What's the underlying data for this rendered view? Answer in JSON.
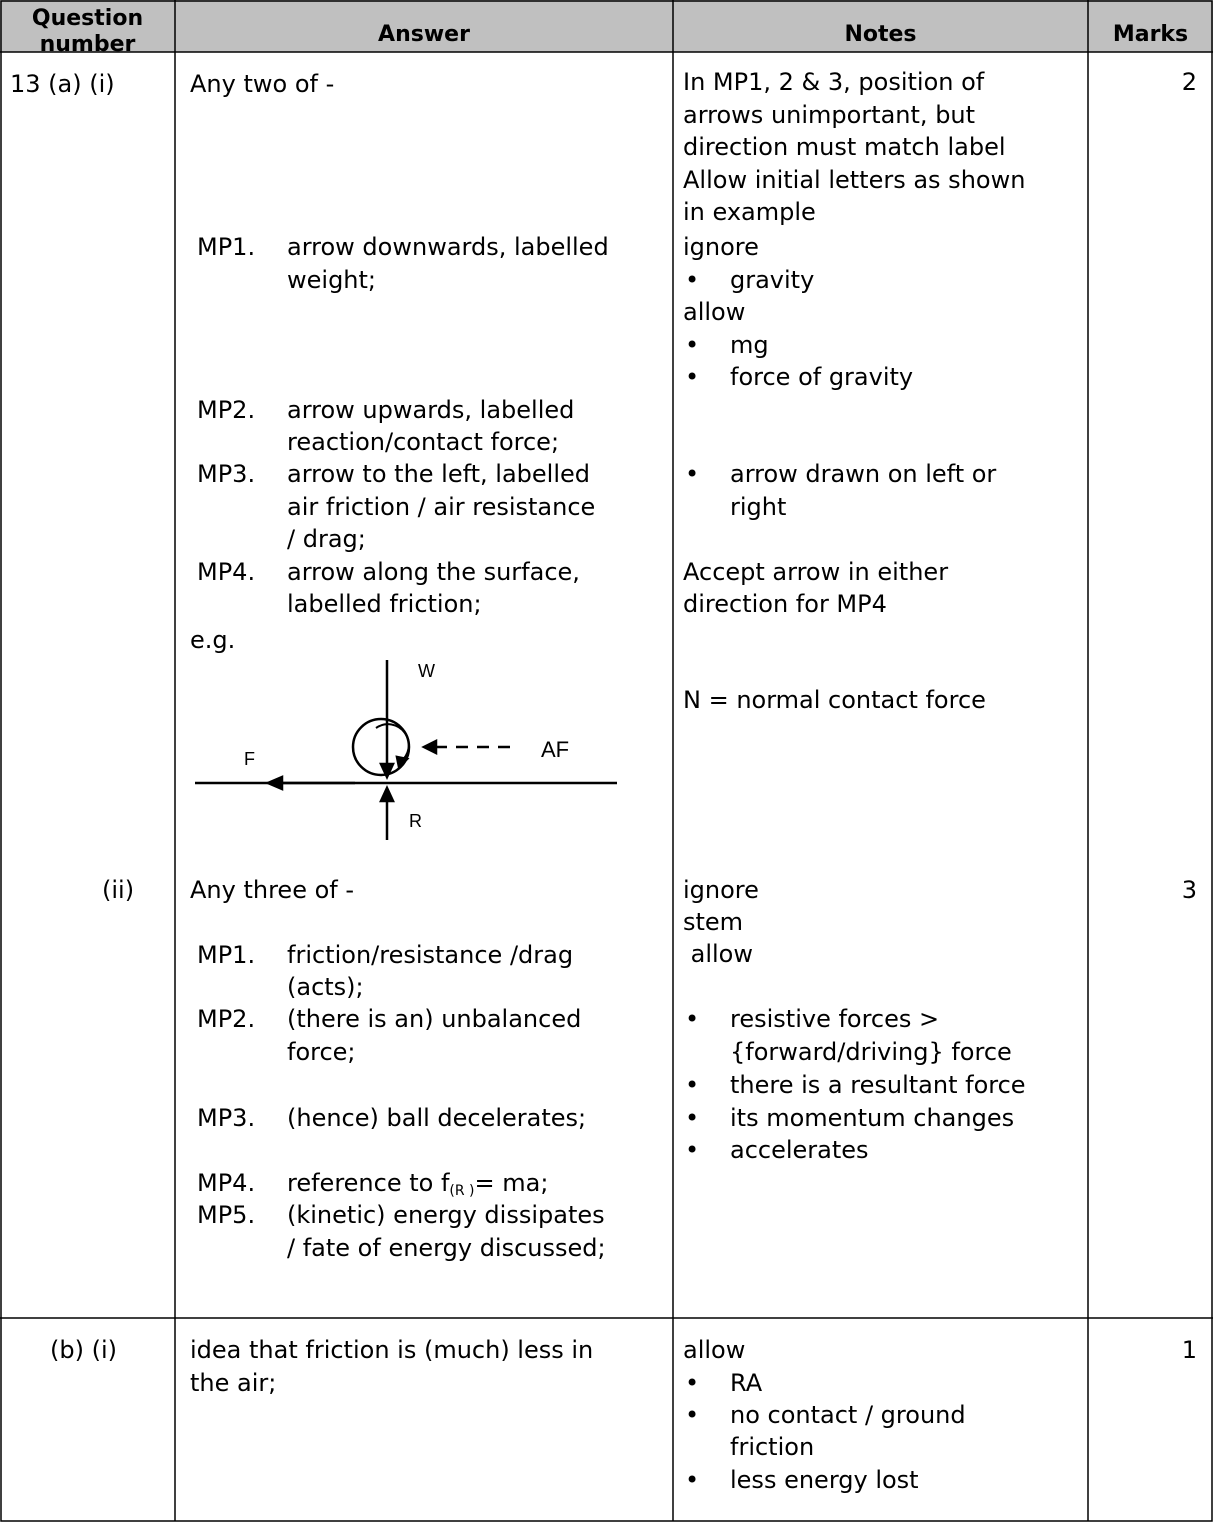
{
  "header": [
    "Question number",
    "Answer",
    "Notes",
    "Marks"
  ],
  "rows": [
    {
      "question": "13 (a)  (i)",
      "answer": {
        "intro": "Any two of -",
        "points": [
          {
            "label": "MP1.",
            "text": [
              "arrow downwards, labelled",
              "weight;"
            ]
          },
          {
            "label": "MP2.",
            "text": [
              "arrow upwards, labelled",
              "reaction/contact force;"
            ]
          },
          {
            "label": "MP3.",
            "text": [
              "arrow to the left, labelled",
              "air friction / air resistance",
              "/ drag;"
            ]
          },
          {
            "label": "MP4.",
            "text": [
              "arrow along the surface,",
              "labelled friction;"
            ]
          }
        ],
        "example": "e.g.",
        "diagram_labels": [
          "W",
          "F",
          "AF",
          "R"
        ]
      },
      "notes": [
        {
          "bullet": false,
          "text": [
            "In MP1, 2 & 3, position of",
            "arrows unimportant, but",
            "direction must match label",
            "Allow initial letters as shown",
            "in example",
            "ignore"
          ]
        },
        {
          "bullet": true,
          "text": [
            "gravity"
          ]
        },
        {
          "bullet": false,
          "text": [
            "allow"
          ]
        },
        {
          "bullet": true,
          "text": [
            "mg"
          ]
        },
        {
          "bullet": true,
          "text": [
            "force of gravity"
          ]
        },
        {
          "bullet": true,
          "text": [
            "arrow drawn on left or",
            "right"
          ]
        },
        {
          "bullet": false,
          "text": [
            "Accept arrow in either",
            "direction for MP4"
          ]
        },
        {
          "bullet": false,
          "text": [
            "N = normal contact force"
          ]
        }
      ],
      "marks": 2
    },
    {
      "question": "(ii)",
      "answer": {
        "intro": "Any three of -",
        "points": [
          {
            "label": "MP1.",
            "text": [
              "friction/resistance /drag",
              "(acts);"
            ]
          },
          {
            "label": "MP2.",
            "text": [
              "(there is an) unbalanced",
              "force;"
            ]
          },
          {
            "label": "MP3.",
            "text": [
              "(hence) ball decelerates;"
            ]
          },
          {
            "label": "MP4.",
            "text": [
              "reference to f",
              "(R )",
              "= ma;"
            ]
          },
          {
            "label": "MP5.",
            "text": [
              "(kinetic) energy dissipates",
              "/ fate of energy discussed;"
            ]
          }
        ]
      },
      "notes": [
        {
          "bullet": false,
          "text": [
            "ignore",
            "stem",
            " allow"
          ]
        },
        {
          "bullet": true,
          "text": [
            "resistive forces >",
            "{forward/driving} force"
          ]
        },
        {
          "bullet": true,
          "text": [
            "there is a resultant force"
          ]
        },
        {
          "bullet": true,
          "text": [
            "its momentum changes"
          ]
        },
        {
          "bullet": true,
          "text": [
            "accelerates"
          ]
        }
      ],
      "marks": 3
    },
    {
      "question": "(b)  (i)",
      "answer": {
        "text": [
          "idea that friction is (much) less in",
          "the air;"
        ]
      },
      "notes": [
        {
          "bullet": false,
          "text": [
            "allow"
          ]
        },
        {
          "bullet": true,
          "text": [
            "RA"
          ]
        },
        {
          "bullet": true,
          "text": [
            "no contact / ground",
            "friction"
          ]
        },
        {
          "bullet": true,
          "text": [
            "less energy lost"
          ]
        }
      ],
      "marks": 1
    }
  ]
}
